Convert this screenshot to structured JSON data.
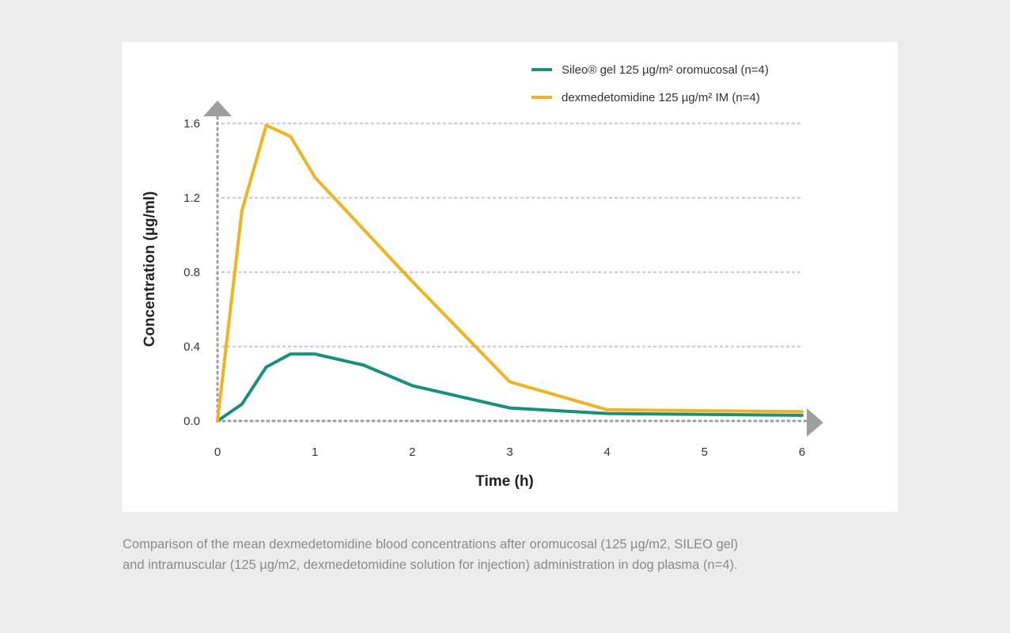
{
  "chart_data": {
    "type": "line",
    "xlabel": "Time (h)",
    "ylabel": "Concentration  (µg/ml)",
    "xlim": [
      0,
      6
    ],
    "ylim": [
      0,
      1.6
    ],
    "xticks": [
      "0",
      "1",
      "2",
      "3",
      "4",
      "5",
      "6"
    ],
    "yticks": [
      "0.0",
      "0.4",
      "0.8",
      "1.2",
      "1.6"
    ],
    "grid": "horizontal dotted",
    "legend_position": "top-right",
    "series": [
      {
        "name": "Sileo® gel 125 µg/m² oromucosal (n=4)",
        "color": "#14917f",
        "x": [
          0,
          0.25,
          0.5,
          0.75,
          1,
          1.5,
          2,
          3,
          4,
          6
        ],
        "y": [
          0.0,
          0.09,
          0.29,
          0.36,
          0.36,
          0.3,
          0.19,
          0.07,
          0.04,
          0.03
        ]
      },
      {
        "name": "dexmedetomidine 125 µg/m² IM (n=4)",
        "color": "#f2b31c",
        "x": [
          0,
          0.25,
          0.5,
          0.75,
          1,
          1.5,
          2,
          3,
          4,
          6
        ],
        "y": [
          0.0,
          1.13,
          1.59,
          1.53,
          1.31,
          1.03,
          0.75,
          0.21,
          0.06,
          0.05
        ]
      }
    ]
  },
  "caption": {
    "line1": "Comparison of the mean dexmedetomidine blood concentrations after oromucosal (125 µg/m2, SILEO gel)",
    "line2": "and intramuscular (125 µg/m2, dexmedetomidine solution for injection) administration in dog plasma (n=4)."
  },
  "colors": {
    "background": "#ececec",
    "panel": "#ffffff",
    "axis": "#9e9e9e",
    "grid": "#cfcfcf",
    "caption_text": "#8a8a8a"
  }
}
